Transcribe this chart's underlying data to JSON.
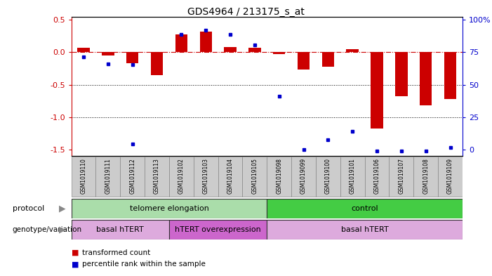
{
  "title": "GDS4964 / 213175_s_at",
  "samples": [
    "GSM1019110",
    "GSM1019111",
    "GSM1019112",
    "GSM1019113",
    "GSM1019102",
    "GSM1019103",
    "GSM1019104",
    "GSM1019105",
    "GSM1019098",
    "GSM1019099",
    "GSM1019100",
    "GSM1019101",
    "GSM1019106",
    "GSM1019107",
    "GSM1019108",
    "GSM1019109"
  ],
  "red_bars": [
    0.07,
    -0.05,
    -0.17,
    -0.35,
    0.27,
    0.32,
    0.08,
    0.07,
    -0.03,
    -0.27,
    -0.22,
    0.05,
    -1.18,
    -0.68,
    -0.82,
    -0.72
  ],
  "blue_dots": [
    -0.07,
    -0.18,
    -0.19,
    null,
    0.28,
    0.34,
    0.28,
    0.11,
    -0.68,
    null,
    null,
    -1.22,
    null,
    null,
    null,
    null
  ],
  "blue_dots2": [
    null,
    null,
    -1.42,
    null,
    null,
    null,
    null,
    null,
    null,
    -1.5,
    -1.35,
    null,
    -1.52,
    -1.52,
    -1.52,
    -1.47
  ],
  "ylim": [
    -1.6,
    0.55
  ],
  "yticks_left": [
    0.5,
    0.0,
    -0.5,
    -1.0,
    -1.5
  ],
  "yticks_right": [
    100,
    75,
    50,
    25,
    0
  ],
  "right_ytick_positions": [
    0.5,
    0.0,
    -0.5,
    -1.0,
    -1.5
  ],
  "hline_y": 0.0,
  "dotted_lines": [
    -0.5,
    -1.0
  ],
  "protocol_groups": [
    {
      "label": "telomere elongation",
      "start": 0,
      "end": 8,
      "color": "#aaddaa"
    },
    {
      "label": "control",
      "start": 8,
      "end": 16,
      "color": "#44cc44"
    }
  ],
  "genotype_groups": [
    {
      "label": "basal hTERT",
      "start": 0,
      "end": 4,
      "color": "#ddaadd"
    },
    {
      "label": "hTERT overexpression",
      "start": 4,
      "end": 8,
      "color": "#cc66cc"
    },
    {
      "label": "basal hTERT",
      "start": 8,
      "end": 16,
      "color": "#ddaadd"
    }
  ],
  "red_bar_color": "#CC0000",
  "blue_dot_color": "#0000CC",
  "bg_color": "#FFFFFF",
  "plot_bg": "#FFFFFF",
  "xlabel_bg": "#CCCCCC",
  "legend_red": "transformed count",
  "legend_blue": "percentile rank within the sample"
}
